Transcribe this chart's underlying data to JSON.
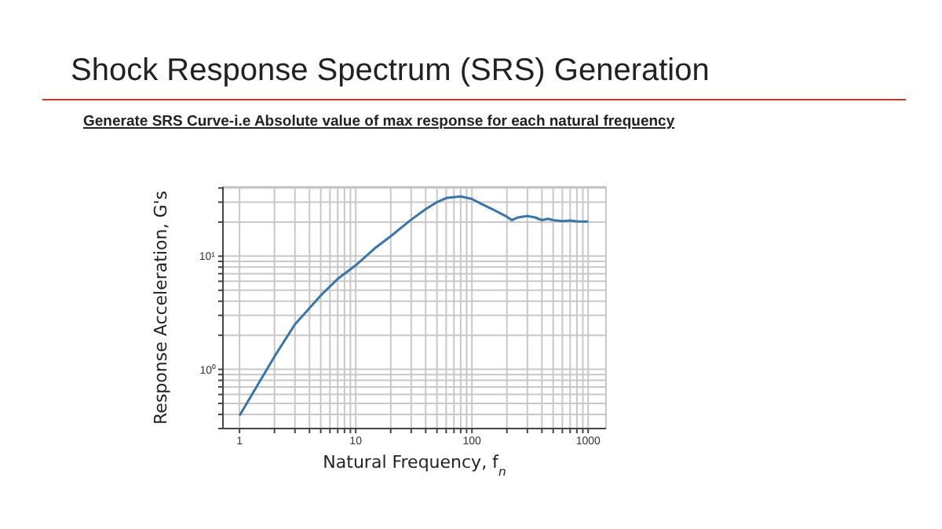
{
  "chart_data": {
    "type": "line",
    "title": "Shock Response Spectrum (SRS) Generation",
    "subtitle": "Generate SRS Curve-i.e Absolute value of max response for each natural frequency",
    "xlabel": "Natural Frequency, f$_{n}$",
    "ylabel": "Response Acceleration, G's",
    "x": [
      1,
      2,
      3,
      5,
      7,
      10,
      15,
      20,
      30,
      40,
      50,
      60,
      80,
      100,
      120,
      150,
      200,
      220,
      250,
      300,
      350,
      400,
      450,
      500,
      600,
      700,
      800,
      1000
    ],
    "series": [
      {
        "color": "#3a75a8",
        "values": [
          0.39,
          1.3,
          2.5,
          4.5,
          6.3,
          8.3,
          12,
          15,
          21,
          26,
          30,
          32.6,
          33.7,
          32,
          29,
          26,
          22.3,
          20.8,
          22,
          22.6,
          22,
          20.8,
          21.4,
          20.8,
          20.4,
          20.6,
          20.3,
          20.2
        ]
      }
    ],
    "log": "xy",
    "xlim": [
      0.72,
      1425
    ],
    "ylim": [
      0.3,
      41
    ],
    "xticks": [
      1,
      {
        "value": 2,
        "label": null
      },
      {
        "value": 3,
        "label": null
      },
      {
        "value": 4,
        "label": null
      },
      {
        "value": 5,
        "label": null
      },
      {
        "value": 6,
        "label": null
      },
      {
        "value": 7,
        "label": null
      },
      {
        "value": 8,
        "label": null
      },
      {
        "value": 9,
        "label": null
      },
      10,
      {
        "value": 20,
        "label": null
      },
      {
        "value": 30,
        "label": null
      },
      {
        "value": 40,
        "label": null
      },
      {
        "value": 50,
        "label": null
      },
      {
        "value": 60,
        "label": null
      },
      {
        "value": 70,
        "label": null
      },
      {
        "value": 80,
        "label": null
      },
      {
        "value": 90,
        "label": null
      },
      100,
      {
        "value": 200,
        "label": null
      },
      {
        "value": 300,
        "label": null
      },
      {
        "value": 400,
        "label": null
      },
      {
        "value": 500,
        "label": null
      },
      {
        "value": 600,
        "label": null
      },
      {
        "value": 700,
        "label": null
      },
      {
        "value": 800,
        "label": null
      },
      {
        "value": 900,
        "label": null
      },
      1000
    ],
    "yticks": [
      {
        "value": 0.3,
        "label": null
      },
      {
        "value": 0.4,
        "label": null
      },
      {
        "value": 0.5,
        "label": null
      },
      {
        "value": 0.6,
        "label": null
      },
      {
        "value": 0.7,
        "label": null
      },
      {
        "value": 0.8,
        "label": null
      },
      {
        "value": 0.9,
        "label": null
      },
      {
        "value": 1,
        "label": "10⁰"
      },
      {
        "value": 2,
        "label": null
      },
      {
        "value": 3,
        "label": null
      },
      {
        "value": 4,
        "label": null
      },
      {
        "value": 5,
        "label": null
      },
      {
        "value": 6,
        "label": null
      },
      {
        "value": 7,
        "label": null
      },
      {
        "value": 8,
        "label": null
      },
      {
        "value": 9,
        "label": null
      },
      {
        "value": 10,
        "label": "10¹"
      },
      {
        "value": 20,
        "label": null
      },
      {
        "value": 30,
        "label": null
      },
      {
        "value": 40,
        "label": null
      }
    ],
    "grid": true,
    "marker": "none",
    "line_style": "solid"
  }
}
